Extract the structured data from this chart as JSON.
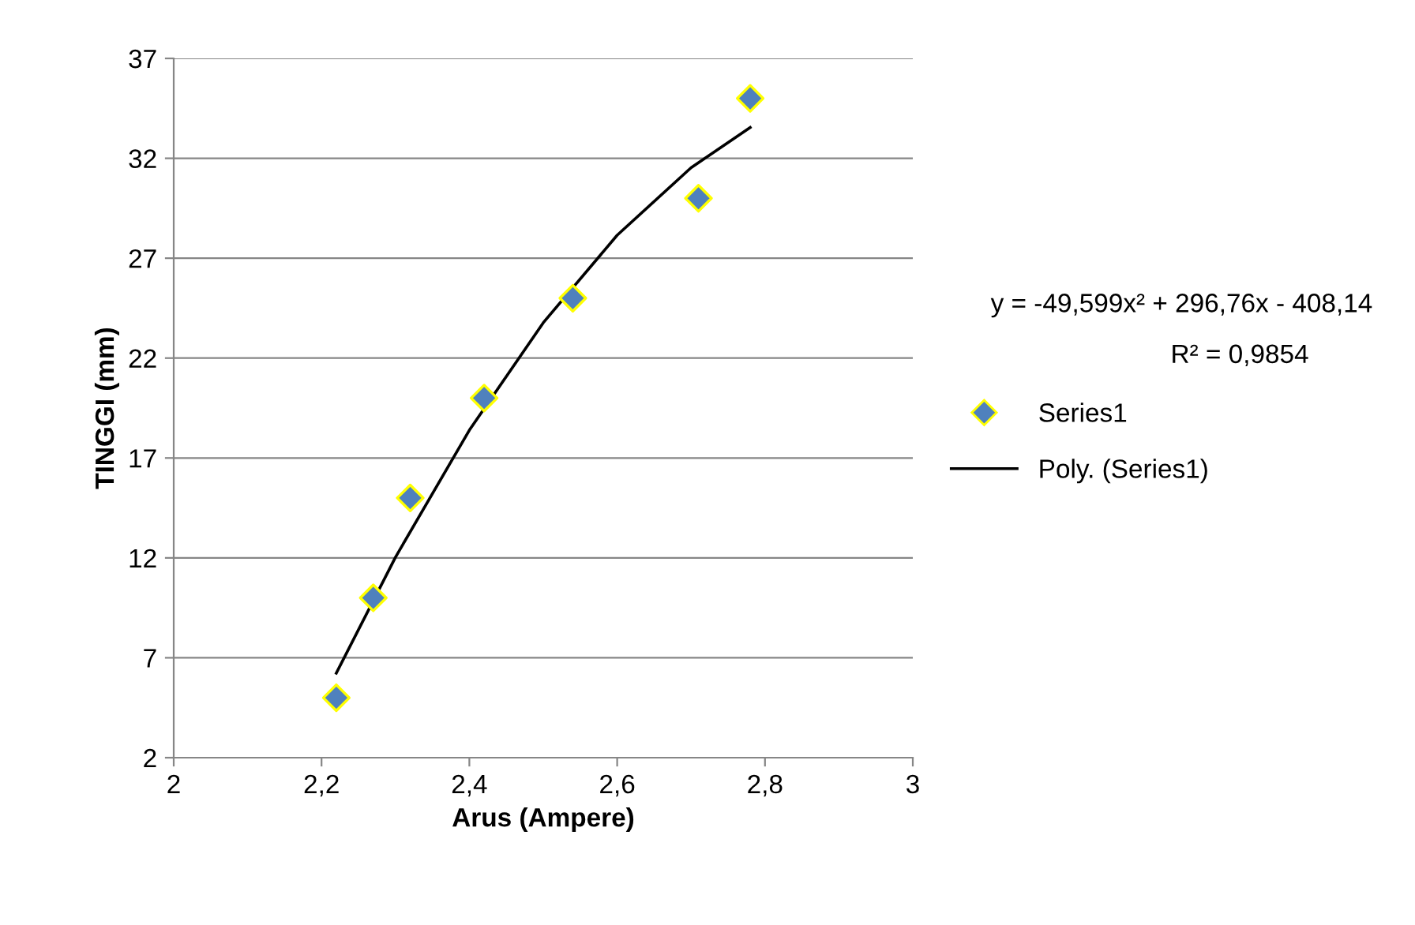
{
  "chart_data": {
    "type": "scatter",
    "xlabel": "Arus (Ampere)",
    "ylabel": "TINGGI (mm)",
    "series": [
      {
        "name": "Series1",
        "color": "#4f81bd",
        "marker": "diamond",
        "x": [
          2.22,
          2.27,
          2.32,
          2.42,
          2.54,
          2.71,
          2.78
        ],
        "values": [
          5,
          10,
          15,
          20,
          25,
          30,
          35
        ]
      },
      {
        "name": "Poly. (Series1)",
        "type": "line",
        "color": "#000000",
        "marker": "none",
        "line_style": "solid",
        "x": [
          2.22,
          2.3,
          2.4,
          2.5,
          2.6,
          2.7,
          2.78
        ],
        "values": [
          6.23,
          12.03,
          18.39,
          23.77,
          28.15,
          31.53,
          33.54
        ]
      }
    ],
    "xlim": [
      2,
      3
    ],
    "xticks": [
      {
        "value": 2,
        "label": "2"
      },
      {
        "value": 2.2,
        "label": "2,2"
      },
      {
        "value": 2.4,
        "label": "2,4"
      },
      {
        "value": 2.6,
        "label": "2,6"
      },
      {
        "value": 2.8,
        "label": "2,8"
      },
      {
        "value": 3,
        "label": "3"
      }
    ],
    "ylim": [
      2,
      37
    ],
    "yticks": [
      2,
      7,
      12,
      17,
      22,
      27,
      32,
      37
    ],
    "grid": "y",
    "legend": "right",
    "annotations": [
      "y = -49,599x² + 296,76x - 408,14",
      "R² = 0,9854"
    ]
  }
}
